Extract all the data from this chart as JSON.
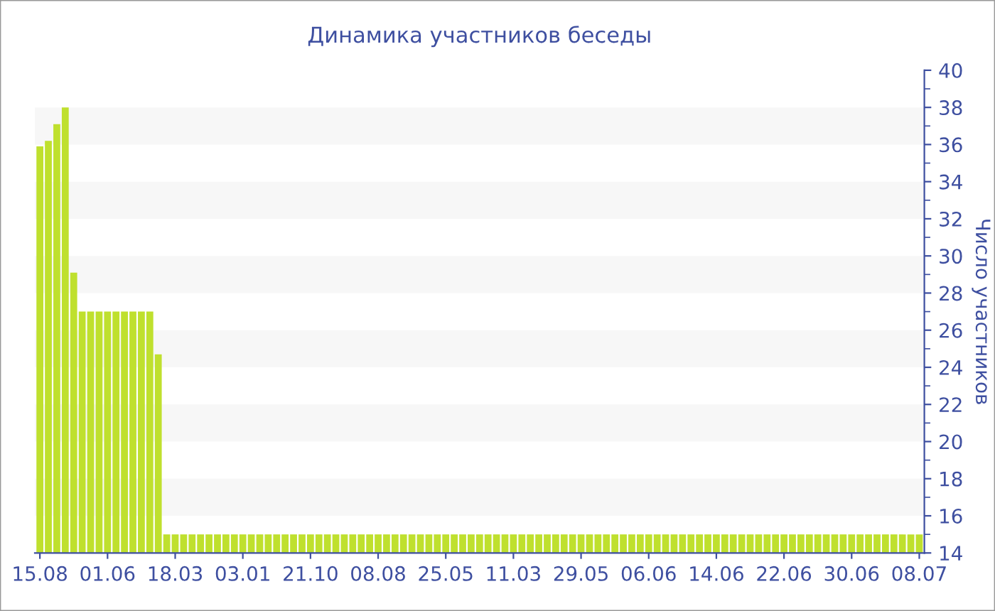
{
  "chart_data": {
    "type": "bar",
    "title": "Динамика участников беседы",
    "ylabel": "Число участников",
    "categories": [
      "15.08",
      null,
      null,
      null,
      null,
      null,
      null,
      null,
      "01.06",
      null,
      null,
      null,
      null,
      null,
      null,
      null,
      "18.03",
      null,
      null,
      null,
      null,
      null,
      null,
      null,
      "03.01",
      null,
      null,
      null,
      null,
      null,
      null,
      null,
      "21.10",
      null,
      null,
      null,
      null,
      null,
      null,
      null,
      "08.08",
      null,
      null,
      null,
      null,
      null,
      null,
      null,
      "25.05",
      null,
      null,
      null,
      null,
      null,
      null,
      null,
      "11.03",
      null,
      null,
      null,
      null,
      null,
      null,
      null,
      "29.05",
      null,
      null,
      null,
      null,
      null,
      null,
      null,
      "06.06",
      null,
      null,
      null,
      null,
      null,
      null,
      null,
      "14.06",
      null,
      null,
      null,
      null,
      null,
      null,
      null,
      "22.06",
      null,
      null,
      null,
      null,
      null,
      null,
      null,
      "30.06",
      null,
      null,
      null,
      null,
      null,
      null,
      null,
      "08.07"
    ],
    "values": [
      35.9,
      36.2,
      37.1,
      38.0,
      29.1,
      27,
      27,
      27,
      27,
      27,
      27,
      27,
      27,
      27,
      24.7,
      15,
      15,
      15,
      15,
      15,
      15,
      15,
      15,
      15,
      15,
      15,
      15,
      15,
      15,
      15,
      15,
      15,
      15,
      15,
      15,
      15,
      15,
      15,
      15,
      15,
      15,
      15,
      15,
      15,
      15,
      15,
      15,
      15,
      15,
      15,
      15,
      15,
      15,
      15,
      15,
      15,
      15,
      15,
      15,
      15,
      15,
      15,
      15,
      15,
      15,
      15,
      15,
      15,
      15,
      15,
      15,
      15,
      15,
      15,
      15,
      15,
      15,
      15,
      15,
      15,
      15,
      15,
      15,
      15,
      15,
      15,
      15,
      15,
      15,
      15,
      15,
      15,
      15,
      15,
      15,
      15,
      15,
      15,
      15,
      15,
      15,
      15,
      15,
      15,
      15
    ],
    "color": "#bfe02e",
    "ylim": [
      14,
      40
    ],
    "yticks": [
      14,
      16,
      18,
      20,
      22,
      24,
      26,
      28,
      30,
      32,
      34,
      36,
      38,
      40
    ],
    "legend": false,
    "bands": [
      {
        "axis": "y",
        "from": 16,
        "to": 18,
        "color": "#f7f7f7"
      },
      {
        "axis": "y",
        "from": 20,
        "to": 22,
        "color": "#f7f7f7"
      },
      {
        "axis": "y",
        "from": 24,
        "to": 26,
        "color": "#f7f7f7"
      },
      {
        "axis": "y",
        "from": 28,
        "to": 30,
        "color": "#f7f7f7"
      },
      {
        "axis": "y",
        "from": 32,
        "to": 34,
        "color": "#f7f7f7"
      },
      {
        "axis": "y",
        "from": 36,
        "to": 38,
        "color": "#f7f7f7"
      }
    ]
  }
}
